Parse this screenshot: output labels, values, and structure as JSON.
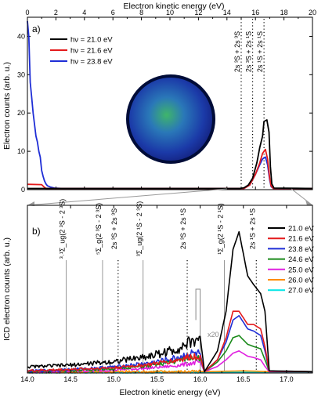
{
  "chart_data": [
    {
      "panel_label": "a)",
      "type": "line",
      "title": "",
      "xlabel": "Electron kinetic energy (eV)",
      "ylabel": "Electron counts (arb. u.)",
      "xlim": [
        0,
        20
      ],
      "ylim": [
        0,
        45
      ],
      "xticks": [
        0,
        2,
        4,
        6,
        8,
        10,
        12,
        14,
        16,
        18,
        20
      ],
      "yticks": [
        0,
        10,
        20,
        30,
        40
      ],
      "xaxis_position": "top",
      "legend_position": "top-left",
      "grid": false,
      "series": [
        {
          "name": "hν = 21.0 eV",
          "color": "#000000",
          "x": [
            0,
            14.9,
            15.2,
            15.5,
            15.8,
            16.1,
            16.3,
            16.5,
            16.6,
            16.8,
            16.95,
            17.05,
            17.15,
            17.3,
            20
          ],
          "y": [
            0.3,
            0.3,
            0.5,
            1.2,
            3,
            7,
            11,
            14,
            17.8,
            18.2,
            15,
            6,
            1.5,
            0.4,
            0.3
          ]
        },
        {
          "name": "hν = 21.6 eV",
          "color": "#e41a1c",
          "x": [
            0,
            1,
            1.2,
            1.3,
            15.2,
            15.6,
            16.0,
            16.3,
            16.5,
            16.7,
            16.85,
            17.0,
            17.1,
            17.25,
            20
          ],
          "y": [
            1.4,
            1.3,
            0.6,
            0.3,
            0.3,
            1.2,
            4,
            7,
            9.5,
            10.5,
            8,
            3,
            1,
            0.3,
            0.3
          ]
        },
        {
          "name": "hν = 23.8 eV",
          "color": "#1f2ed6",
          "x": [
            0,
            0.1,
            0.2,
            0.3,
            0.4,
            0.5,
            0.6,
            0.7,
            0.8,
            0.9,
            1.0,
            1.1,
            1.2,
            1.3,
            1.4,
            1.6,
            1.9,
            2.5,
            15.2,
            15.6,
            16.0,
            16.3,
            16.5,
            16.7,
            16.85,
            17.0,
            17.1,
            17.25,
            20
          ],
          "y": [
            44,
            40,
            28,
            24,
            20,
            17,
            14,
            12.5,
            10,
            8.5,
            5,
            3.5,
            2.3,
            1.5,
            1.0,
            0.7,
            0.4,
            0.3,
            0.3,
            1.2,
            4,
            6.5,
            8,
            8.5,
            6.5,
            2.5,
            0.8,
            0.3,
            0.3
          ]
        }
      ],
      "annotations": [
        {
          "text": "2s ³S + 2s ³S",
          "x": 15.0
        },
        {
          "text": "2s ³S + 2s ¹S",
          "x": 15.8
        },
        {
          "text": "2s ¹S + 2s ¹S",
          "x": 16.6
        }
      ]
    },
    {
      "panel_label": "b)",
      "type": "line",
      "title": "",
      "xlabel": "Electron kinetic energy (eV)",
      "ylabel": "ICD electron counts (arb. u.)",
      "xlim": [
        14.0,
        17.3
      ],
      "ylim": [
        0,
        38
      ],
      "xticks": [
        14.0,
        14.5,
        15.0,
        15.5,
        16.0,
        16.5,
        17.0
      ],
      "legend_position": "top-right",
      "grid": false,
      "magnification": "x20",
      "series": [
        {
          "name": "21.0 eV",
          "color": "#000000",
          "x": [
            14.0,
            14.5,
            15.0,
            15.4,
            15.7,
            15.9,
            16.0,
            16.05,
            16.2,
            16.3,
            16.38,
            16.45,
            16.55,
            16.62,
            16.7,
            16.75,
            16.8,
            17.3
          ],
          "y": [
            1.4,
            1.8,
            2.6,
            3.8,
            5.2,
            7.0,
            8.3,
            0.3,
            5,
            14,
            28,
            32,
            22,
            20,
            18,
            14,
            0.5,
            0.3
          ]
        },
        {
          "name": "21.6 eV",
          "color": "#e41a1c",
          "x": [
            14.0,
            14.5,
            15.0,
            15.4,
            15.7,
            15.9,
            16.0,
            16.05,
            16.2,
            16.3,
            16.38,
            16.45,
            16.55,
            16.62,
            16.7,
            16.75,
            16.8,
            17.3
          ],
          "y": [
            0.5,
            0.8,
            1.2,
            1.9,
            2.8,
            3.7,
            4.0,
            0.3,
            3,
            8,
            14,
            14,
            11,
            11,
            10,
            6,
            0.4,
            0.3
          ]
        },
        {
          "name": "23.8 eV",
          "color": "#1f2ed6",
          "x": [
            14.0,
            14.5,
            15.0,
            15.4,
            15.7,
            15.9,
            16.0,
            16.05,
            16.2,
            16.3,
            16.38,
            16.45,
            16.55,
            16.62,
            16.7,
            16.75,
            16.8,
            17.3
          ],
          "y": [
            0.4,
            0.8,
            1.4,
            2.2,
            3.3,
            4.4,
            4.4,
            0.3,
            3,
            7,
            12,
            13,
            10,
            9.5,
            8.5,
            5,
            0.4,
            0.3
          ]
        },
        {
          "name": "24.6 eV",
          "color": "#1a8a1a",
          "x": [
            14.0,
            14.5,
            15.0,
            15.4,
            15.7,
            15.9,
            16.0,
            16.05,
            16.2,
            16.3,
            16.38,
            16.45,
            16.55,
            16.62,
            16.7,
            16.75,
            16.8,
            17.3
          ],
          "y": [
            0.3,
            0.6,
            1.0,
            1.6,
            2.6,
            3.8,
            3.5,
            0.3,
            2.5,
            5,
            8,
            8.5,
            6.5,
            6,
            5.5,
            3,
            0.4,
            0.3
          ]
        },
        {
          "name": "25.0 eV",
          "color": "#e020e0",
          "x": [
            14.0,
            14.5,
            15.0,
            15.4,
            15.7,
            15.9,
            16.0,
            16.05,
            16.2,
            16.3,
            16.38,
            16.45,
            16.55,
            16.62,
            16.7,
            16.75,
            16.8,
            17.3
          ],
          "y": [
            0.2,
            0.4,
            0.7,
            1.1,
            1.6,
            2.2,
            2.5,
            0.3,
            1.5,
            3,
            4.5,
            5,
            3.8,
            3.5,
            3,
            1.5,
            0.3,
            0.3
          ]
        },
        {
          "name": "26.0 eV",
          "color": "#ff8c00",
          "x": [
            14.0,
            14.5,
            15.0,
            15.5,
            16.0,
            16.05,
            16.3,
            16.5,
            16.8,
            17.3
          ],
          "y": [
            0.25,
            0.25,
            0.3,
            0.3,
            0.35,
            0.3,
            0.4,
            0.5,
            0.3,
            0.3
          ]
        },
        {
          "name": "27.0 eV",
          "color": "#00e5e5",
          "x": [
            14.0,
            14.5,
            15.0,
            15.5,
            16.0,
            16.05,
            16.3,
            16.5,
            16.8,
            17.3
          ],
          "y": [
            0.15,
            0.15,
            0.15,
            0.15,
            0.2,
            0.15,
            0.2,
            0.2,
            0.15,
            0.15
          ]
        }
      ],
      "annotations": [
        {
          "text": "³˒¹Σ_ug(2 ³S - 2 ³S)",
          "x": 14.45,
          "style": "solid"
        },
        {
          "text": "⁵Σ_g(2 ³S - 2 ³S)",
          "x": 14.87,
          "style": "solid"
        },
        {
          "text": "2s ³S + 2s ³S",
          "x": 15.05,
          "style": "dotted"
        },
        {
          "text": "³Σ_ug(2 ¹S - 2 ³S)",
          "x": 15.34,
          "style": "solid"
        },
        {
          "text": "2s ³S + 2s ¹S",
          "x": 15.85,
          "style": "dotted"
        },
        {
          "text": "¹Σ_g(2 ¹S - 2 ¹S)",
          "x": 16.28,
          "style": "solid"
        },
        {
          "text": "2s ¹S + 2s ¹S",
          "x": 16.65,
          "style": "dotted"
        }
      ]
    }
  ]
}
